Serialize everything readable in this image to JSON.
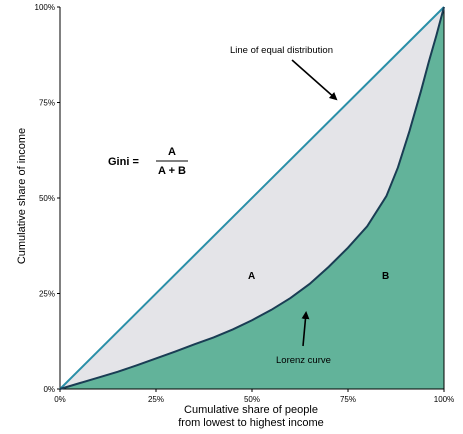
{
  "chart_data": {
    "type": "line",
    "xlabel_lines": [
      "Cumulative share of people",
      "from lowest to highest income"
    ],
    "ylabel": "Cumulative share of income",
    "xlim": [
      0,
      100
    ],
    "ylim": [
      0,
      100
    ],
    "x_ticks": [
      "0%",
      "25%",
      "50%",
      "75%",
      "100%"
    ],
    "y_ticks": [
      "0%",
      "25%",
      "50%",
      "75%",
      "100%"
    ],
    "grid": false,
    "series": [
      {
        "name": "Line of equal distribution",
        "x": [
          0,
          100
        ],
        "y": [
          0,
          100
        ],
        "color": "#2a8fa8"
      },
      {
        "name": "Lorenz curve",
        "x": [
          0,
          5,
          10,
          15,
          20,
          25,
          30,
          35,
          40,
          45,
          50,
          55,
          60,
          65,
          70,
          75,
          80,
          85,
          88,
          91,
          94,
          96,
          98,
          100
        ],
        "y": [
          0,
          1.5,
          3,
          4.5,
          6.2,
          8,
          9.8,
          11.7,
          13.5,
          15.6,
          18,
          20.7,
          23.8,
          27.5,
          32,
          37,
          42.6,
          50.5,
          58,
          67.5,
          78,
          85.5,
          92.5,
          100
        ],
        "color": "#1a3d54"
      }
    ],
    "annotations": {
      "equal_line_label": "Line of equal distribution",
      "lorenz_label": "Lorenz curve",
      "region_a": "A",
      "region_b": "B",
      "formula_lhs": "Gini =",
      "formula_numerator": "A",
      "formula_denominator": "A + B"
    },
    "colors": {
      "area_a": "#e4e4e8",
      "area_b": "#62b39a",
      "equal_line": "#2a8fa8",
      "lorenz_line": "#1a3d54"
    }
  }
}
